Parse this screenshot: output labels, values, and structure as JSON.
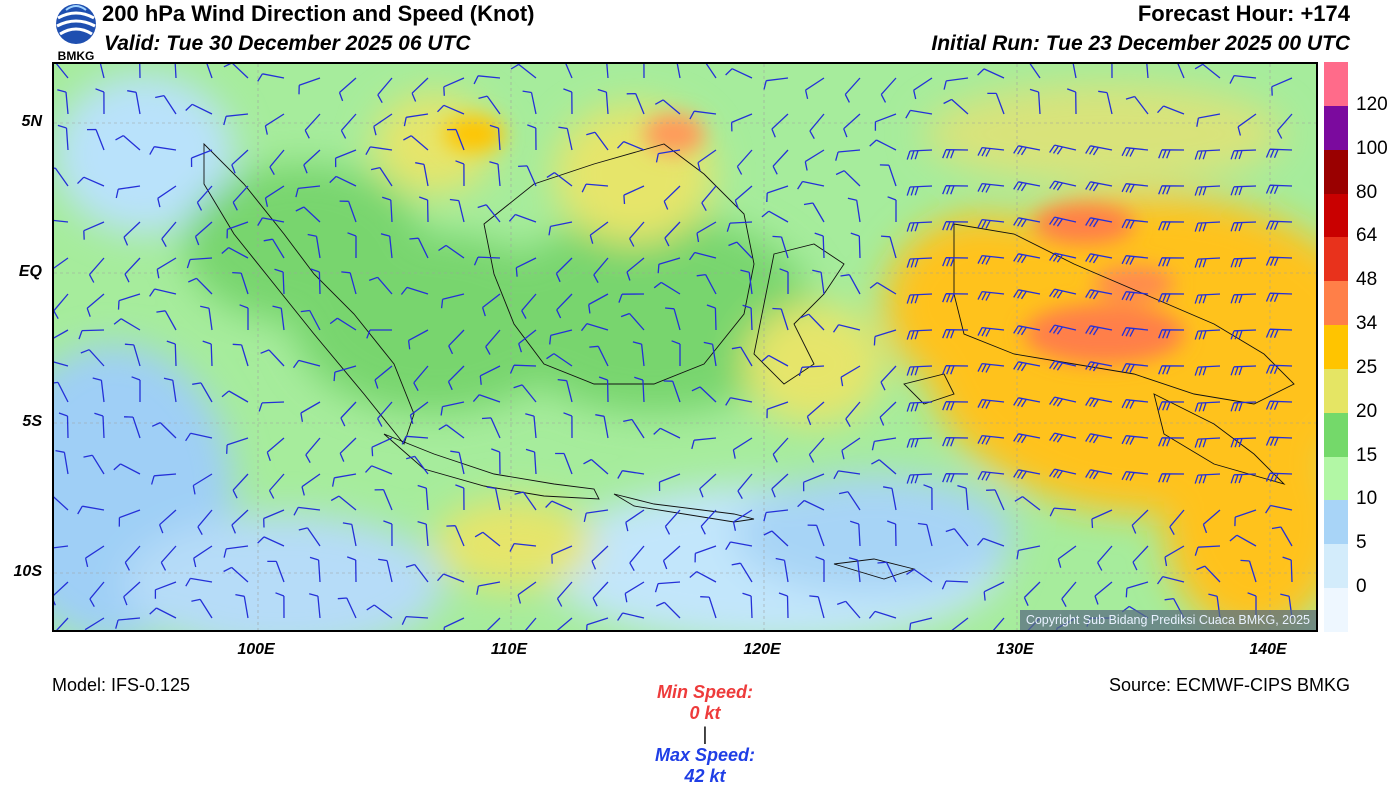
{
  "header": {
    "title": "200 hPa Wind Direction and Speed (Knot)",
    "valid": "Valid: Tue 30 December 2025 06 UTC",
    "forecast_hour": "Forecast Hour: +174",
    "initial_run": "Initial Run: Tue 23 December 2025 00 UTC",
    "logo_text": "BMKG"
  },
  "axes": {
    "y_ticks": [
      "5N",
      "EQ",
      "5S",
      "10S"
    ],
    "x_ticks": [
      "100E",
      "110E",
      "120E",
      "130E",
      "140E"
    ]
  },
  "colorbar": {
    "labels": [
      "120",
      "100",
      "80",
      "64",
      "48",
      "34",
      "25",
      "20",
      "15",
      "10",
      "5",
      "0"
    ],
    "colors": [
      "#ff6b8a",
      "#7b0a9e",
      "#9a0000",
      "#c90000",
      "#e8321c",
      "#ff7f48",
      "#ffc400",
      "#e5e564",
      "#74d96a",
      "#b2f7a5",
      "#a8d4f7",
      "#d3ecfb",
      "#eef7ff"
    ]
  },
  "stats": {
    "min_label": "Min Speed:",
    "min_value": "0 kt",
    "separator": "|",
    "max_label": "Max Speed:",
    "max_value": "42 kt",
    "min_color": "#ee3b3b",
    "max_color": "#1f3ee6"
  },
  "copyright": "Copyright Sub Bidang Prediksi Cuaca BMKG, 2025",
  "footer": {
    "model": "Model: IFS-0.125",
    "source": "Source: ECMWF-CIPS BMKG"
  }
}
